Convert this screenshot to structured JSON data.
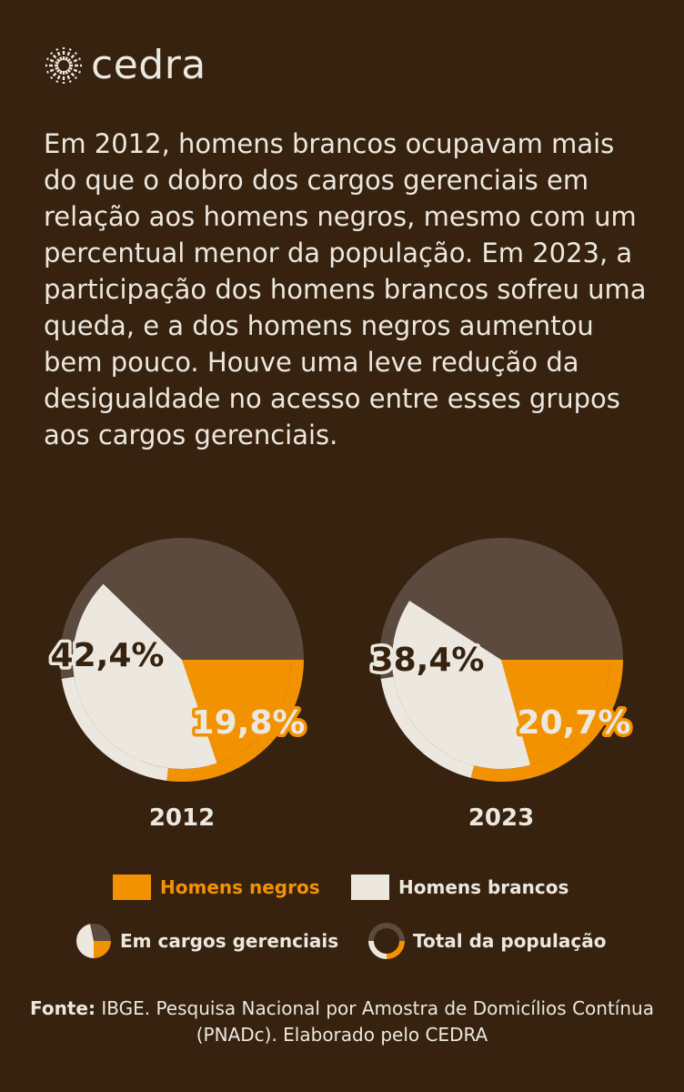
{
  "brand": {
    "name": "cedra"
  },
  "intro_text": "Em 2012, homens brancos ocupavam mais do que o dobro dos cargos gerenciais em relação aos homens negros, mesmo com um percentual menor da população. Em 2023, a participação dos homens brancos sofreu uma queda, e a dos homens negros aumentou bem pouco. Houve uma leve redução da desigualdade no acesso entre esses grupos aos cargos gerenciais.",
  "colors": {
    "background": "#36220f",
    "negros": "#f39200",
    "brancos": "#ece8df",
    "outros": "#5b4a3d",
    "text": "#ece8df"
  },
  "chart_data": [
    {
      "type": "pie",
      "title": "2012",
      "inner_label": "Em cargos gerenciais",
      "inner": [
        {
          "name": "Homens negros",
          "value": 19.8,
          "label": "19,8%"
        },
        {
          "name": "Homens brancos",
          "value": 42.4,
          "label": "42,4%"
        }
      ],
      "outer_label": "Total da população",
      "outer": [
        {
          "name": "Homens negros",
          "value": 27
        },
        {
          "name": "Homens brancos",
          "value": 20.5
        }
      ]
    },
    {
      "type": "pie",
      "title": "2023",
      "inner_label": "Em cargos gerenciais",
      "inner": [
        {
          "name": "Homens negros",
          "value": 20.7,
          "label": "20,7%"
        },
        {
          "name": "Homens brancos",
          "value": 38.4,
          "label": "38,4%"
        }
      ],
      "outer_label": "Total da população",
      "outer": [
        {
          "name": "Homens negros",
          "value": 29
        },
        {
          "name": "Homens brancos",
          "value": 18.5
        }
      ]
    }
  ],
  "legend": {
    "negros": "Homens negros",
    "brancos": "Homens brancos",
    "gerenciais": "Em cargos gerenciais",
    "populacao": "Total da população"
  },
  "source": {
    "label": "Fonte:",
    "text": " IBGE. Pesquisa Nacional por Amostra de Domicílios Contínua (PNADc). Elaborado pelo CEDRA"
  }
}
